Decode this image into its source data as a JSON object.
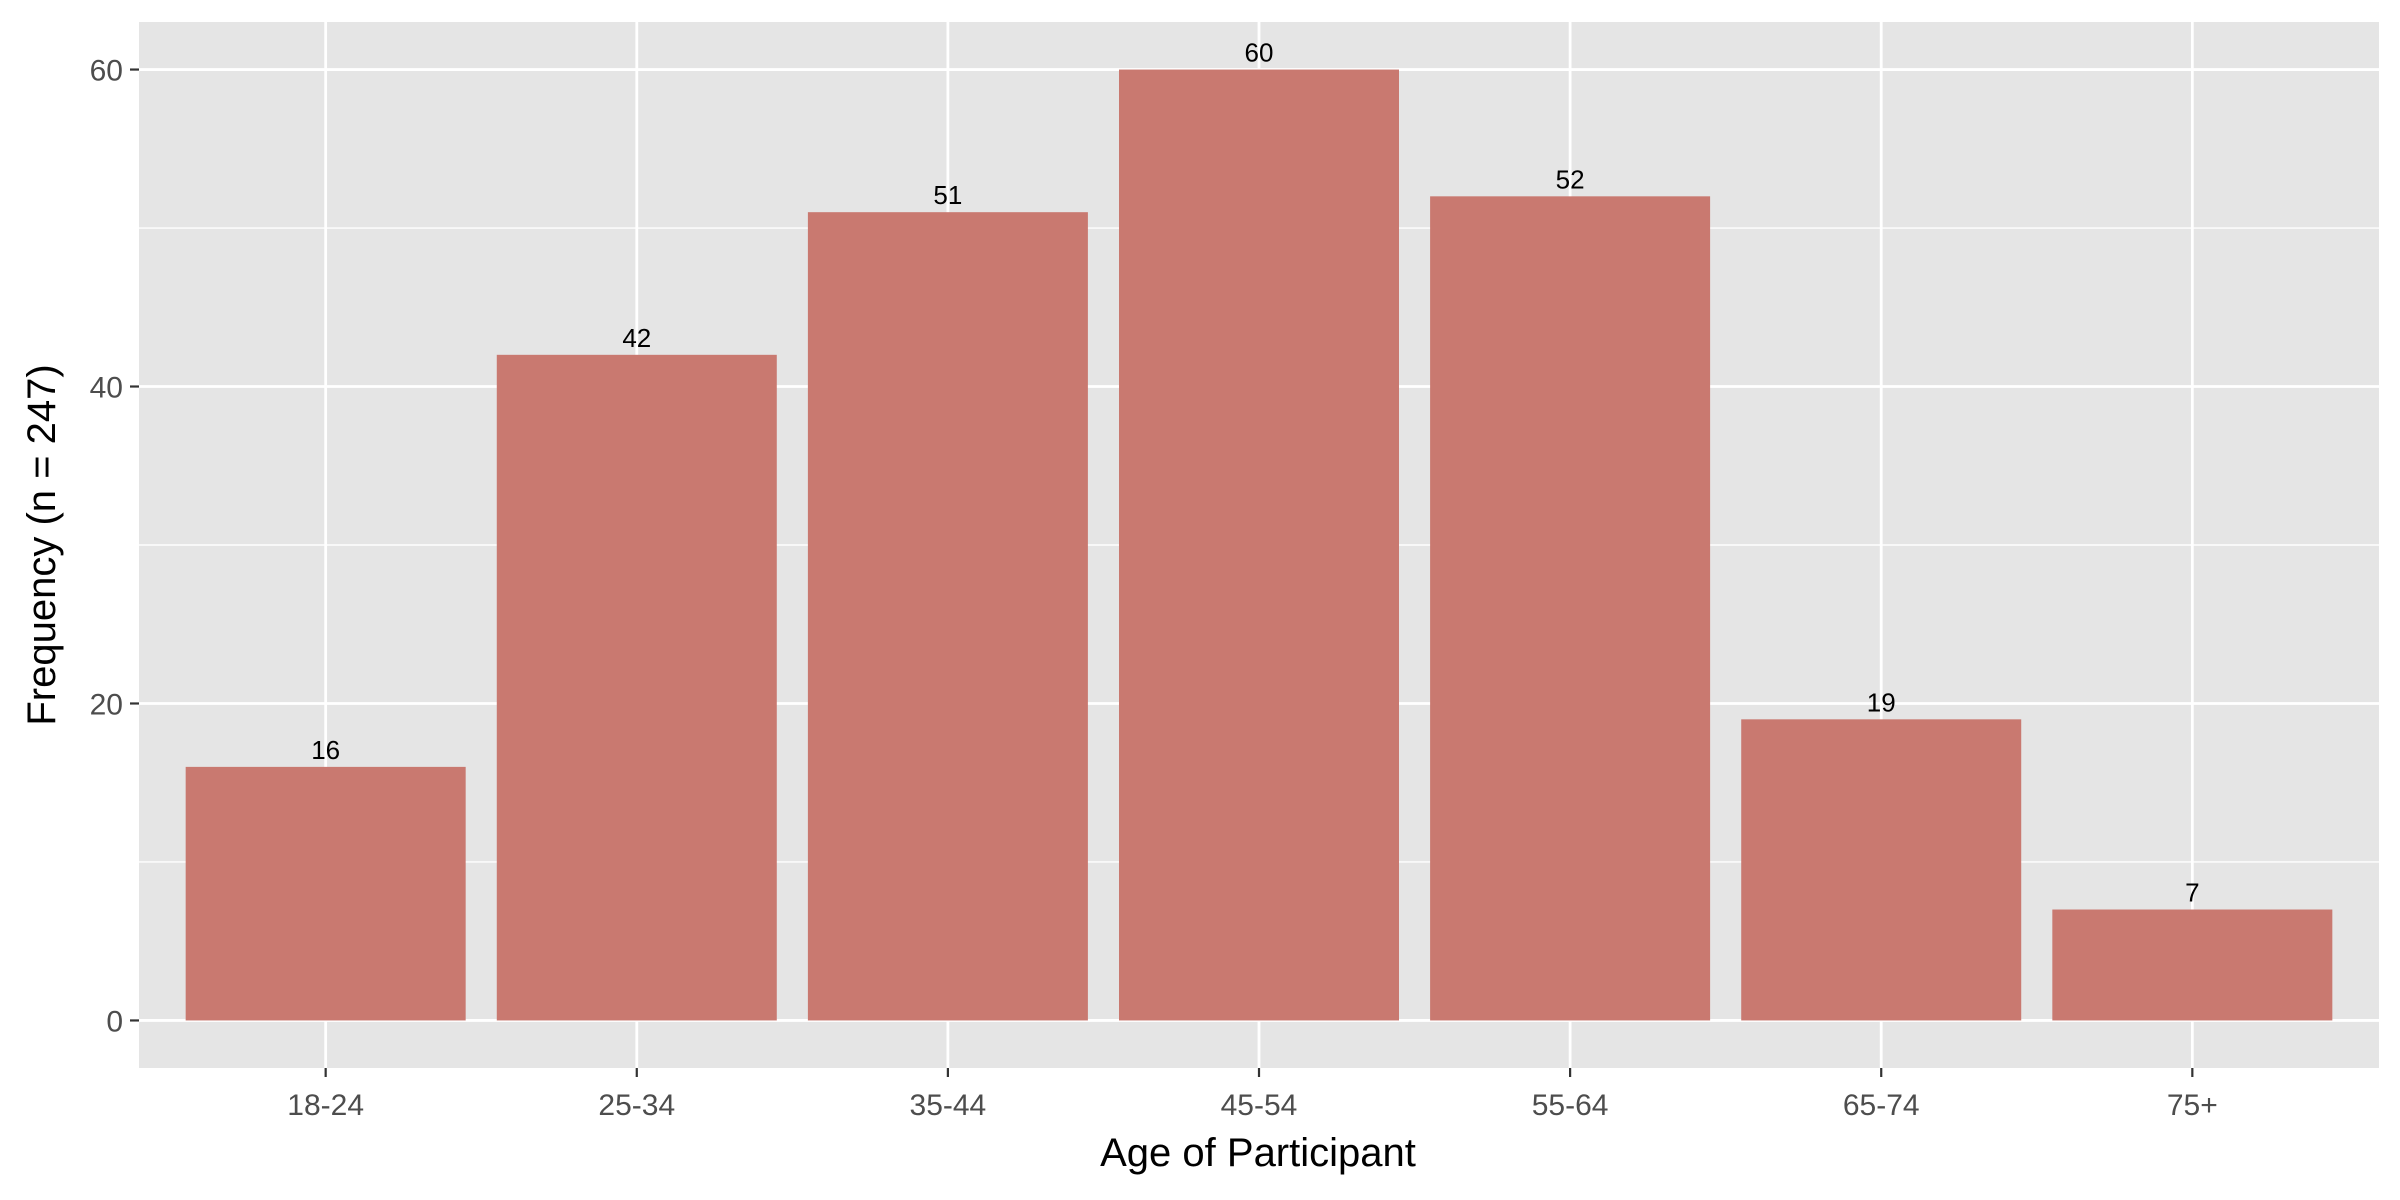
{
  "chart_data": {
    "type": "bar",
    "title": "",
    "xlabel": "Age of Participant",
    "ylabel": "Frequency (n = 247)",
    "categories": [
      "18-24",
      "25-34",
      "35-44",
      "45-54",
      "55-64",
      "65-74",
      "75+"
    ],
    "values": [
      16,
      42,
      51,
      60,
      52,
      19,
      7
    ],
    "data_labels": [
      "16",
      "42",
      "51",
      "60",
      "52",
      "19",
      "7"
    ],
    "ylim": [
      -3,
      63
    ],
    "y_ticks": [
      0,
      20,
      40,
      60
    ],
    "y_tick_labels": [
      "0",
      "20",
      "40",
      "60"
    ],
    "y_minor_ticks": [
      10,
      30,
      50
    ],
    "grid": true,
    "legend": "none",
    "colors": {
      "bar": "#c97970",
      "panel_background": "#e5e5e5",
      "grid": "#ffffff",
      "tick_label": "#4d4d4d",
      "axis_title": "#000000",
      "data_label": "#000000"
    }
  }
}
